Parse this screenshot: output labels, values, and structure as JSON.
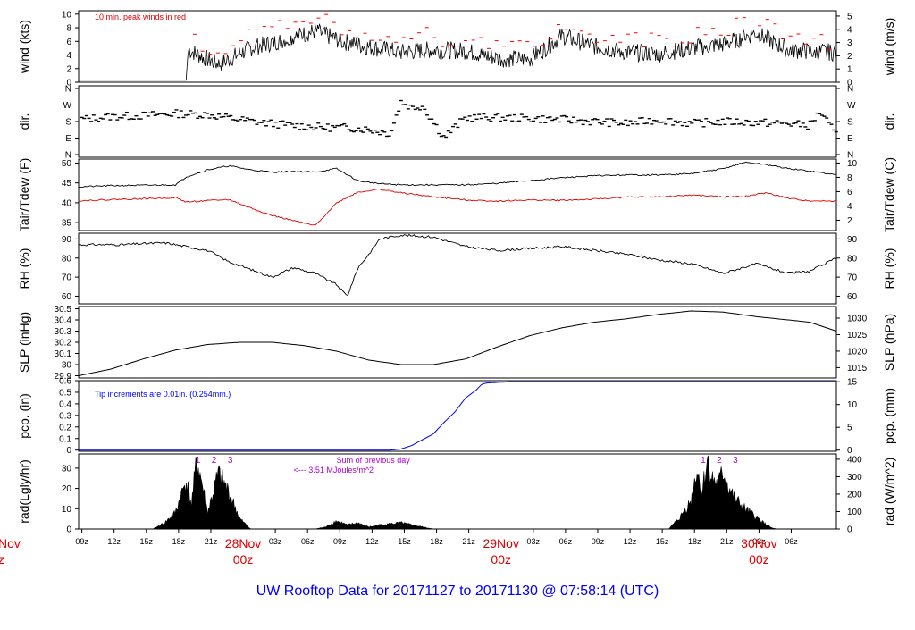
{
  "title": "UW Rooftop Data for 20171127  to  20171130 @ 07:58:14  (UTC)",
  "x_axis": {
    "ticks": [
      "09z",
      "12z",
      "15z",
      "18z",
      "21z",
      "03z",
      "06z",
      "09z",
      "12z",
      "15z",
      "18z",
      "21z",
      "03z",
      "06z",
      "09z",
      "12z",
      "15z",
      "18z",
      "21z",
      "03z",
      "06z"
    ],
    "day_labels": [
      {
        "date": "28Nov",
        "hour": "00z"
      },
      {
        "date": "29Nov",
        "hour": "00z"
      },
      {
        "date": "30Nov",
        "hour": "00z"
      }
    ],
    "clipped_left_label": {
      "date": "Nov",
      "hour": "z"
    }
  },
  "chart_data": [
    {
      "type": "line",
      "name": "wind",
      "ylabel_left": "wind (kts)",
      "ylabel_right": "wind (m/s)",
      "yticks_left": [
        0,
        2,
        4,
        6,
        8,
        10
      ],
      "yticks_right": [
        0,
        1,
        2,
        3,
        4,
        5
      ],
      "ylim": [
        0,
        10.5
      ],
      "annotation": "10 min. peak winds in red",
      "colors": {
        "line": "#000000",
        "peak": "#ff0000"
      },
      "x_hours": [
        0,
        10,
        10.2,
        13,
        16,
        19,
        22,
        24.5,
        27,
        30,
        33,
        36,
        39,
        42,
        45,
        48,
        51,
        54,
        57,
        60,
        63,
        66,
        68,
        70.5
      ],
      "values": [
        0.3,
        0.3,
        4.8,
        2.6,
        5,
        6.2,
        7.5,
        6,
        5.2,
        4.4,
        4.8,
        4.6,
        3.5,
        3.4,
        6.8,
        5.3,
        4.4,
        4.2,
        5,
        5.6,
        7.2,
        4.8,
        4.5,
        4.4
      ]
    },
    {
      "type": "scatter",
      "name": "direction",
      "ylabel_left": "dir.",
      "ylabel_right": "dir.",
      "yticks_left": [
        "N",
        "E",
        "S",
        "W",
        "N"
      ],
      "yticks_right": [
        "N",
        "E",
        "S",
        "W",
        "N"
      ],
      "ylim": [
        0,
        360
      ],
      "x_hours": [
        0,
        3,
        6,
        9,
        12,
        15,
        17,
        20,
        23,
        25,
        27,
        29,
        30,
        31,
        32,
        34,
        36,
        39,
        42,
        45,
        48,
        51,
        54,
        57,
        60,
        63,
        66,
        68,
        69,
        70.5
      ],
      "values": [
        190,
        205,
        210,
        220,
        215,
        190,
        175,
        160,
        150,
        150,
        140,
        120,
        280,
        250,
        260,
        100,
        200,
        200,
        195,
        190,
        180,
        170,
        190,
        170,
        180,
        175,
        170,
        160,
        230,
        110
      ]
    },
    {
      "type": "line",
      "name": "tair_tdew",
      "ylabel_left": "Tair/Tdew (F)",
      "ylabel_right": "Tair/Tdew (C)",
      "yticks_left": [
        35,
        40,
        45,
        50
      ],
      "yticks_right": [
        2,
        4,
        6,
        8,
        10
      ],
      "ylim": [
        33,
        51
      ],
      "x_hours": [
        0,
        3,
        6,
        9,
        10,
        12,
        14,
        16,
        18,
        20,
        22,
        24,
        26,
        28,
        30,
        33,
        36,
        39,
        42,
        45,
        48,
        51,
        54,
        57,
        60,
        62,
        64,
        66,
        68,
        70.5
      ],
      "series": [
        {
          "name": "Tair",
          "color": "#000000",
          "values": [
            44,
            44.3,
            44.4,
            44.5,
            46.5,
            48.3,
            49.3,
            48.3,
            47.7,
            47.9,
            47.7,
            48.6,
            45.5,
            44.8,
            44.5,
            44.5,
            44.5,
            44.9,
            45.6,
            46.3,
            46.8,
            47,
            47,
            47.3,
            48.6,
            50.2,
            49.6,
            48.6,
            48,
            47
          ]
        },
        {
          "name": "Tdew",
          "color": "#dd0000",
          "values": [
            40.5,
            40.8,
            41,
            41.3,
            40.2,
            40.5,
            40.8,
            38.7,
            36.8,
            35.5,
            34.2,
            40,
            42.7,
            43.4,
            42.5,
            41.5,
            40.7,
            40.4,
            40.7,
            40.6,
            40.9,
            41.4,
            41.5,
            41.9,
            41.5,
            41.6,
            42.5,
            41.1,
            40.5,
            40.4
          ]
        }
      ]
    },
    {
      "type": "line",
      "name": "rh",
      "ylabel_left": "RH (%)",
      "ylabel_right": "RH (%)",
      "yticks_left": [
        60,
        70,
        80,
        90
      ],
      "yticks_right": [
        60,
        70,
        80,
        90
      ],
      "ylim": [
        56,
        93
      ],
      "x_hours": [
        0,
        4,
        8,
        10,
        12,
        14,
        16,
        18,
        20,
        22,
        24,
        25,
        26,
        27,
        28,
        30,
        33,
        36,
        39,
        42,
        45,
        48,
        51,
        54,
        57,
        60,
        63,
        66,
        68,
        70.5
      ],
      "values": [
        87,
        87,
        88,
        86,
        84,
        78,
        74,
        70,
        75,
        72,
        66,
        60,
        75,
        82,
        90,
        92,
        91,
        86,
        84,
        85,
        86,
        84,
        82,
        79,
        77,
        72,
        77,
        72,
        73,
        80
      ]
    },
    {
      "type": "line",
      "name": "slp",
      "ylabel_left": "SLP (inHg)",
      "ylabel_right": "SLP (hPa)",
      "yticks_left": [
        29.9,
        30.0,
        30.1,
        30.2,
        30.3,
        30.4,
        30.5
      ],
      "yticks_right": [
        1015,
        1020,
        1025,
        1030
      ],
      "ylim": [
        29.88,
        30.52
      ],
      "x_hours": [
        0,
        3,
        6,
        9,
        12,
        15,
        18,
        21,
        24,
        27,
        30,
        33,
        36,
        39,
        42,
        45,
        48,
        51,
        54,
        57,
        60,
        63,
        66,
        68,
        70.5
      ],
      "values": [
        29.9,
        29.96,
        30.05,
        30.13,
        30.18,
        30.2,
        30.2,
        30.17,
        30.12,
        30.04,
        30.0,
        30.0,
        30.05,
        30.16,
        30.26,
        30.33,
        30.38,
        30.41,
        30.45,
        30.48,
        30.47,
        30.43,
        30.4,
        30.38,
        30.3
      ]
    },
    {
      "type": "line",
      "name": "precip",
      "ylabel_left": "pcp. (in)",
      "ylabel_right": "pcp. (mm)",
      "yticks_left": [
        0.0,
        0.1,
        0.2,
        0.3,
        0.4,
        0.5,
        0.6
      ],
      "yticks_right": [
        0,
        5,
        10,
        15
      ],
      "ylim": [
        -0.01,
        0.6
      ],
      "annotation": "Tip increments are 0.01in. (0.254mm.)",
      "color": "#0000ee",
      "x_hours": [
        0,
        29,
        30,
        31,
        32,
        33,
        34,
        35,
        36,
        37,
        37.5,
        38,
        40,
        70.5
      ],
      "values": [
        0,
        0,
        0.01,
        0.04,
        0.09,
        0.14,
        0.24,
        0.33,
        0.45,
        0.52,
        0.57,
        0.58,
        0.59,
        0.59
      ]
    },
    {
      "type": "area",
      "name": "radiation",
      "ylabel_left": "rad(Lgly/hr)",
      "ylabel_right": "rad (W/m^2)",
      "yticks_left": [
        0,
        10,
        20,
        30
      ],
      "yticks_right": [
        0,
        100,
        200,
        300,
        400
      ],
      "ylim": [
        0,
        37
      ],
      "annotation_lines": [
        "Sum of previous day",
        "<--- 3.51 MJoules/m^2"
      ],
      "markers": [
        "1",
        "2",
        "3",
        "1",
        "2",
        "3"
      ],
      "x_hours": [
        6.9,
        8,
        9,
        10,
        10.5,
        11,
        11.5,
        12,
        13,
        14,
        15,
        16,
        17,
        18,
        20,
        21,
        22,
        23,
        24,
        25,
        26,
        27,
        28,
        30,
        31,
        32,
        33,
        34,
        35,
        36,
        37,
        38,
        39,
        40,
        50,
        54.9,
        56,
        57,
        57.5,
        58,
        58.5,
        59,
        59.5,
        60,
        60.5,
        61,
        62,
        63,
        64,
        64.5,
        65
      ],
      "values": [
        0,
        3,
        8,
        24,
        12,
        34,
        22,
        8,
        27,
        18,
        5,
        0,
        0,
        0,
        0,
        0,
        0,
        1,
        4,
        2,
        3,
        1,
        2,
        3,
        2,
        1,
        0,
        0,
        0,
        0,
        0,
        0,
        0,
        0,
        0,
        0,
        6,
        14,
        30,
        18,
        34,
        24,
        22,
        28,
        20,
        15,
        10,
        6,
        2,
        0.5,
        0
      ]
    }
  ]
}
